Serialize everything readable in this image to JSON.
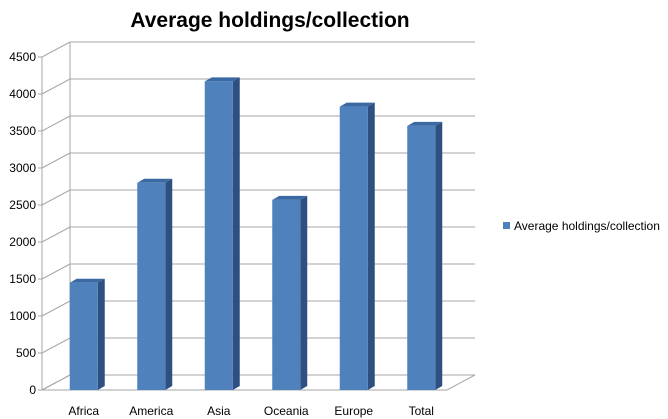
{
  "chart_data": {
    "type": "bar",
    "title": "Average holdings/collection",
    "categories": [
      "Africa",
      "America",
      "Asia",
      "Oceania",
      "Europe",
      "Total"
    ],
    "series": [
      {
        "name": "Average holdings/collection",
        "values": [
          1450,
          2800,
          4170,
          2570,
          3830,
          3570
        ],
        "color": "#4f81bd"
      }
    ],
    "y_ticks": [
      0,
      500,
      1000,
      1500,
      2000,
      2500,
      3000,
      3500,
      4000,
      4500
    ],
    "ylim": [
      0,
      4500
    ],
    "xlabel": "",
    "ylabel": "",
    "grid": true,
    "legend": "right",
    "style": "3d-column",
    "colors": {
      "bar_front": "#4f81bd",
      "bar_side": "#2e5080",
      "bar_top": "#3b6aa3",
      "grid": "#a6a6a6",
      "text": "#000000"
    }
  }
}
